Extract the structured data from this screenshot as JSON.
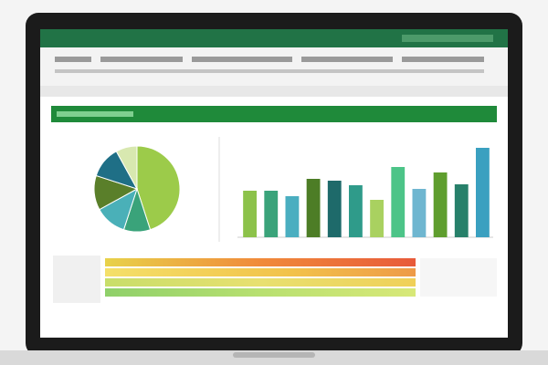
{
  "chart_data": [
    {
      "type": "pie",
      "values": [
        45,
        10,
        12,
        13,
        12,
        8
      ],
      "colors": [
        "#9ccb4a",
        "#3aa37a",
        "#4ab0b8",
        "#5a7f2a",
        "#1f6f86",
        "#d8e8b0"
      ]
    },
    {
      "type": "bar",
      "values": [
        51,
        51,
        45,
        64,
        62,
        57,
        41,
        77,
        53,
        71,
        58,
        98
      ],
      "colors": [
        "#8cc24a",
        "#3aa37a",
        "#4aaec0",
        "#4d7d26",
        "#1e6a6a",
        "#2f9b8a",
        "#a9d160",
        "#4cc488",
        "#6fb6d0",
        "#5f9e2e",
        "#27806a",
        "#3aa0c0"
      ],
      "ylim": [
        0,
        100
      ]
    }
  ]
}
